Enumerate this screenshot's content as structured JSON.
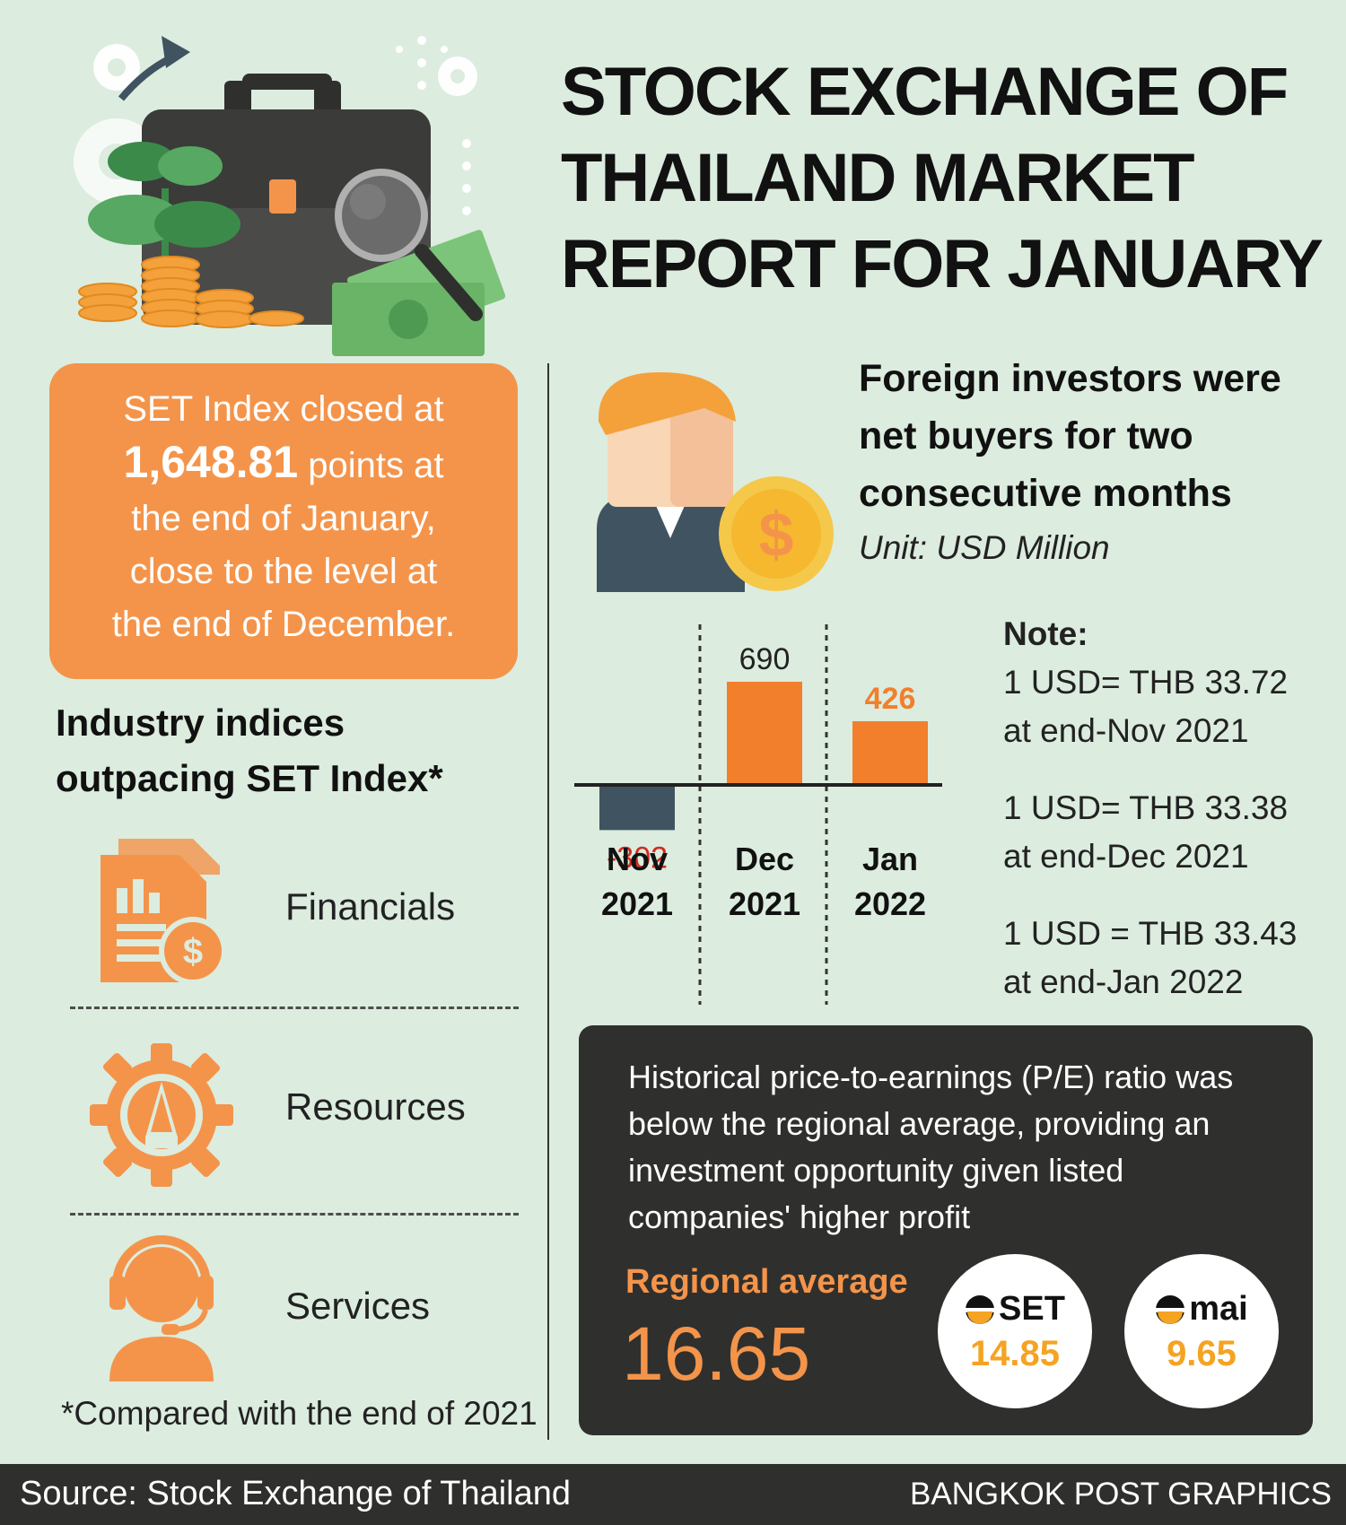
{
  "title": {
    "line1": "STOCK EXCHANGE OF",
    "line2": "THAILAND MARKET",
    "line3": "REPORT FOR JANUARY"
  },
  "set_box": {
    "line1": "SET Index closed at",
    "value": "1,648.81",
    "line2_rest": " points at",
    "line3": "the end of January,",
    "line4": "close to the level at",
    "line5": "the end of December."
  },
  "industries": {
    "heading_line1": "Industry indices",
    "heading_line2": "outpacing SET Index*",
    "items": [
      {
        "label": "Financials",
        "icon": "financials-document-icon"
      },
      {
        "label": "Resources",
        "icon": "resources-gear-icon"
      },
      {
        "label": "Services",
        "icon": "services-headset-icon"
      }
    ],
    "footnote": "*Compared with the end of 2021"
  },
  "investors": {
    "heading_line1": "Foreign investors were",
    "heading_line2": "net buyers for two",
    "heading_line3": "consecutive months",
    "unit": "Unit: USD Million"
  },
  "chart_data": {
    "type": "bar",
    "categories": [
      [
        "Nov",
        "2021"
      ],
      [
        "Dec",
        "2021"
      ],
      [
        "Jan",
        "2022"
      ]
    ],
    "values": [
      -302,
      690,
      426
    ],
    "labels": [
      "-302",
      "690",
      "426"
    ],
    "colors": [
      "#3f5460",
      "#f27f2c",
      "#f27f2c"
    ],
    "label_colors": [
      "#d42b1e",
      "#222222",
      "#f27f2c"
    ],
    "title": "",
    "xlabel": "",
    "ylabel": ""
  },
  "notes": {
    "heading": "Note:",
    "items": [
      {
        "line1": "1 USD= THB 33.72",
        "line2": "at end-Nov 2021"
      },
      {
        "line1": "1 USD= THB 33.38",
        "line2": "at end-Dec 2021"
      },
      {
        "line1": "1 USD = THB 33.43",
        "line2": "at end-Jan 2022"
      }
    ]
  },
  "pe": {
    "text_line1": "Historical price-to-earnings (P/E) ratio was",
    "text_line2": "below the regional average, providing an",
    "text_line3": "investment opportunity given listed",
    "text_line4": "companies' higher profit",
    "regional_label": "Regional average",
    "regional_value": "16.65",
    "set_logo": "SET",
    "set_value": "14.85",
    "mai_logo": "mai",
    "mai_value": "9.65"
  },
  "footer": {
    "source": "Source: Stock Exchange of Thailand",
    "credit": "BANGKOK POST GRAPHICS"
  },
  "colors": {
    "background": "#dcecdf",
    "orange": "#f4944a",
    "bar_orange": "#f27f2c",
    "bar_negative": "#3f5460",
    "dark_panel": "#2f302e",
    "pe_value": "#f5a322"
  }
}
